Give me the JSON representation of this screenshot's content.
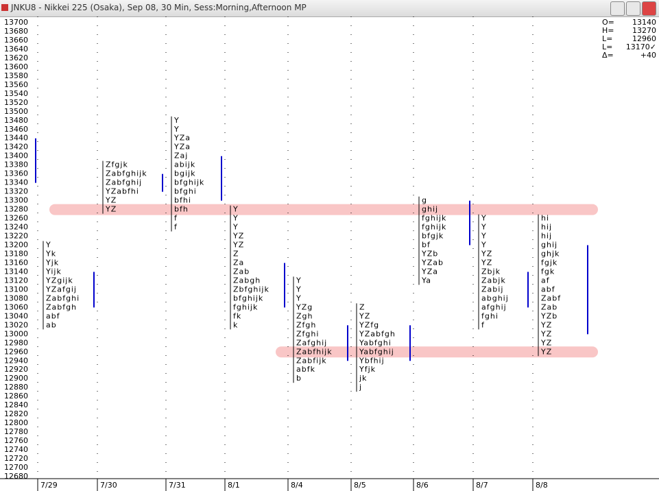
{
  "window": {
    "title": "JNKU8 - Nikkei 225 (Osaka), Sep 08, 30 Min, Sess:Morning,Afternoon MP"
  },
  "info": [
    {
      "label": "O=",
      "value": "13140"
    },
    {
      "label": "H=",
      "value": "13270"
    },
    {
      "label": "L=",
      "value": "12960"
    },
    {
      "label": "L=",
      "value": "13170✓"
    },
    {
      "label": "Δ=",
      "value": "+40"
    }
  ],
  "price_labels": [
    13700,
    13680,
    13660,
    13640,
    13620,
    13600,
    13580,
    13560,
    13540,
    13520,
    13500,
    13480,
    13460,
    13440,
    13420,
    13400,
    13380,
    13360,
    13340,
    13320,
    13300,
    13280,
    13260,
    13240,
    13220,
    13200,
    13180,
    13160,
    13140,
    13120,
    13100,
    13080,
    13060,
    13040,
    13020,
    13000,
    12980,
    12960,
    12940,
    12920,
    12900,
    12880,
    12860,
    12840,
    12820,
    12800,
    12780,
    12760,
    12740,
    12720,
    12700,
    12680
  ],
  "highlights": [
    13280,
    12960
  ],
  "profiles": [
    {
      "date": "7/29",
      "high": 13200,
      "value_area": [
        13140,
        13060
      ],
      "rows": [
        "Y",
        "Yk",
        "Yjk",
        "Yijk",
        "YZgijk",
        "YZafgij",
        "Zabfghi",
        "Zabfgh",
        "abf",
        "ab"
      ]
    },
    {
      "date": "7/30",
      "high": 13380,
      "value_area": [
        13360,
        13320
      ],
      "rows": [
        "Zfgjk",
        "Zabfghijk",
        "Zabfghij",
        "YZabfhi",
        "YZ",
        "YZ"
      ]
    },
    {
      "date": "7/31",
      "high": 13480,
      "value_area": [
        13400,
        13300
      ],
      "rows": [
        "Y",
        "Y",
        "YZa",
        "YZa",
        "Zaj",
        "abijk",
        "bgijk",
        "bfghijk",
        "bfghi",
        "bfhi",
        "bfh",
        "f",
        "f"
      ]
    },
    {
      "date": "8/1",
      "high": 13280,
      "value_area": [
        13160,
        13060
      ],
      "rows": [
        "Y",
        "Y",
        "Y",
        "YZ",
        "YZ",
        "Z",
        "Za",
        "Zab",
        "Zabgh",
        "Zbfghijk",
        "bfghijk",
        "fghijk",
        "fk",
        "k"
      ]
    },
    {
      "date": "8/4",
      "high": 13120,
      "value_area": [
        13020,
        12940
      ],
      "rows": [
        "Y",
        "Y",
        "Y",
        "YZg",
        "Zgh",
        "Zfgh",
        "Zfghi",
        "Zafghij",
        "Zabfhijk",
        "Zabfijk",
        "abfk",
        "b"
      ]
    },
    {
      "date": "8/5",
      "high": 13060,
      "value_area": [
        13020,
        12940
      ],
      "rows": [
        "Z",
        "YZ",
        "YZfg",
        "YZabfgh",
        "Yabfghi",
        "Yabfghij",
        "Ybfhij",
        "Yfjk",
        "jk",
        "j"
      ]
    },
    {
      "date": "8/6",
      "high": 13300,
      "value_area": [
        13300,
        13200
      ],
      "rows": [
        "g",
        "ghij",
        "fghijk",
        "fghijk",
        "bfgjk",
        "bf",
        "YZb",
        "YZab",
        "YZa",
        "Ya"
      ]
    },
    {
      "date": "8/7",
      "high": 13260,
      "value_area": [
        13140,
        13060
      ],
      "rows": [
        "Y",
        "Y",
        "Y",
        "Y",
        "YZ",
        "YZ",
        "Zbjk",
        "Zabjk",
        "Zabij",
        "abghij",
        "afghij",
        "fghi",
        "f"
      ]
    },
    {
      "date": "8/8",
      "high": 13260,
      "value_area": [
        13200,
        13000
      ],
      "rows": [
        "hi",
        "hij",
        "hij",
        "ghij",
        "ghjk",
        "fgjk",
        "fgk",
        "af",
        "abf",
        "Zabf",
        "Zab",
        "YZb",
        "YZ",
        "YZ",
        "YZ",
        "YZ"
      ]
    }
  ]
}
